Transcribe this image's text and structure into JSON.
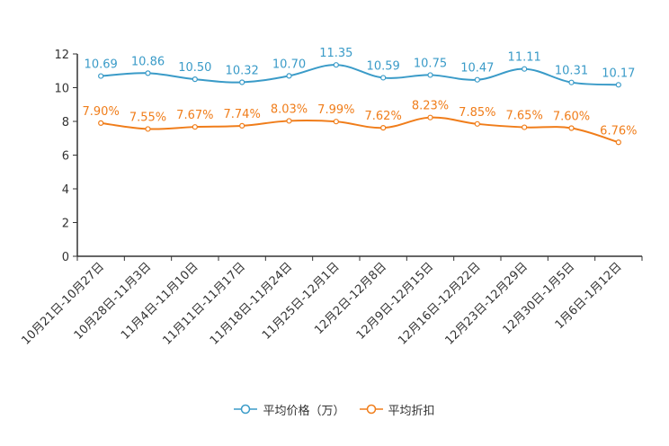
{
  "chart_data": {
    "type": "line",
    "title": "",
    "xlabel": "",
    "ylabel": "",
    "ylim": [
      0,
      12
    ],
    "yticks": [
      0,
      2,
      4,
      6,
      8,
      10,
      12
    ],
    "categories": [
      "10月21日-10月27日",
      "10月28日-11月3日",
      "11月4日-11月10日",
      "11月11日-11月17日",
      "11月18日-11月24日",
      "11月25日-12月1日",
      "12月2日-12月8日",
      "12月9日-12月15日",
      "12月16日-12月22日",
      "12月23日-12月29日",
      "12月30日-1月5日",
      "1月6日-1月12日"
    ],
    "series": [
      {
        "name": "平均价格（万）",
        "color": "#3a9bc8",
        "values": [
          10.69,
          10.86,
          10.5,
          10.32,
          10.7,
          11.35,
          10.59,
          10.75,
          10.47,
          11.11,
          10.31,
          10.17
        ],
        "labels": [
          "10.69",
          "10.86",
          "10.50",
          "10.32",
          "10.70",
          "11.35",
          "10.59",
          "10.75",
          "10.47",
          "11.11",
          "10.31",
          "10.17"
        ]
      },
      {
        "name": "平均折扣",
        "color": "#f07d1a",
        "values": [
          7.9,
          7.55,
          7.67,
          7.74,
          8.03,
          7.99,
          7.62,
          8.23,
          7.85,
          7.65,
          7.6,
          6.76
        ],
        "labels": [
          "7.90%",
          "7.55%",
          "7.67%",
          "7.74%",
          "8.03%",
          "7.99%",
          "7.62%",
          "8.23%",
          "7.85%",
          "7.65%",
          "7.60%",
          "6.76%"
        ]
      }
    ],
    "legend_position": "bottom-center",
    "grid": false
  }
}
